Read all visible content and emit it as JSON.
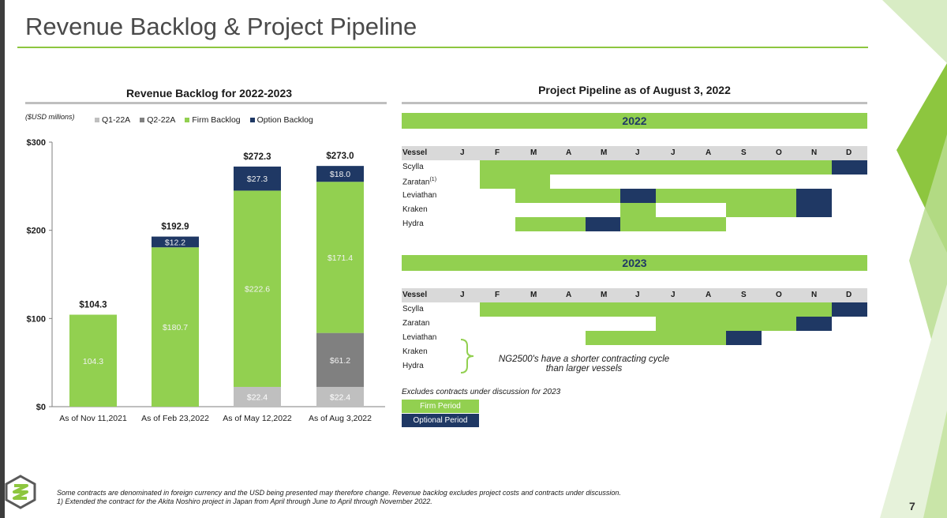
{
  "header": {
    "title": "Revenue Backlog & Project Pipeline"
  },
  "backlog": {
    "title": "Revenue Backlog for 2022-2023",
    "units": "($USD millions)",
    "legend": [
      {
        "label": "Q1-22A",
        "color": "#bfbfbf"
      },
      {
        "label": "Q2-22A",
        "color": "#808080"
      },
      {
        "label": "Firm Backlog",
        "color": "#92d050"
      },
      {
        "label": "Option Backlog",
        "color": "#1f3864"
      }
    ]
  },
  "chart_data": {
    "type": "bar",
    "stacked": true,
    "title": "Revenue Backlog for 2022-2023",
    "ylabel": "($USD millions)",
    "ylim": [
      0,
      300
    ],
    "yticks": [
      0,
      100,
      200,
      300
    ],
    "ytick_labels": [
      "$0",
      "$100",
      "$200",
      "$300"
    ],
    "categories": [
      "As of Nov 11,2021",
      "As of Feb 23,2022",
      "As of May 12,2022",
      "As of Aug 3,2022"
    ],
    "series": [
      {
        "name": "Q1-22A",
        "color": "#bfbfbf",
        "values": [
          0,
          0,
          22.4,
          22.4
        ],
        "labels": [
          "",
          "",
          "$22.4",
          "$22.4"
        ]
      },
      {
        "name": "Q2-22A",
        "color": "#808080",
        "values": [
          0,
          0,
          0,
          61.2
        ],
        "labels": [
          "",
          "",
          "",
          "$61.2"
        ]
      },
      {
        "name": "Firm Backlog",
        "color": "#92d050",
        "values": [
          104.3,
          180.7,
          222.6,
          171.4
        ],
        "labels": [
          "104.3",
          "$180.7",
          "$222.6",
          "$171.4"
        ]
      },
      {
        "name": "Option Backlog",
        "color": "#1f3864",
        "values": [
          0,
          12.2,
          27.3,
          18.0
        ],
        "labels": [
          "",
          "$12.2",
          "$27.3",
          "$18.0"
        ]
      }
    ],
    "totals": [
      "$104.3",
      "$192.9",
      "$272.3",
      "$273.0"
    ]
  },
  "pipeline": {
    "title": "Project Pipeline as of August 3, 2022",
    "vessel_header": "Vessel",
    "months": [
      "J",
      "F",
      "M",
      "A",
      "M",
      "J",
      "J",
      "A",
      "S",
      "O",
      "N",
      "D"
    ],
    "years": [
      {
        "label": "2022",
        "rows": [
          {
            "name": "Scylla",
            "sup": "",
            "segments": [
              {
                "start": 2,
                "end": 11,
                "type": "firm"
              },
              {
                "start": 12,
                "end": 12,
                "type": "opt"
              }
            ]
          },
          {
            "name": "Zaratan",
            "sup": "(1)",
            "segments": [
              {
                "start": 2,
                "end": 3,
                "type": "firm"
              }
            ]
          },
          {
            "name": "Leviathan",
            "sup": "",
            "segments": [
              {
                "start": 3,
                "end": 5,
                "type": "firm"
              },
              {
                "start": 6,
                "end": 6,
                "type": "opt"
              },
              {
                "start": 7,
                "end": 10,
                "type": "firm"
              },
              {
                "start": 11,
                "end": 11,
                "type": "opt"
              }
            ]
          },
          {
            "name": "Kraken",
            "sup": "",
            "segments": [
              {
                "start": 6,
                "end": 6,
                "type": "firm"
              },
              {
                "start": 9,
                "end": 10,
                "type": "firm"
              },
              {
                "start": 11,
                "end": 11,
                "type": "opt"
              }
            ]
          },
          {
            "name": "Hydra",
            "sup": "",
            "segments": [
              {
                "start": 3,
                "end": 4,
                "type": "firm"
              },
              {
                "start": 5,
                "end": 5,
                "type": "opt"
              },
              {
                "start": 6,
                "end": 8,
                "type": "firm"
              }
            ]
          }
        ]
      },
      {
        "label": "2023",
        "rows": [
          {
            "name": "Scylla",
            "sup": "",
            "segments": [
              {
                "start": 2,
                "end": 11,
                "type": "firm"
              },
              {
                "start": 12,
                "end": 12,
                "type": "opt"
              }
            ]
          },
          {
            "name": "Zaratan",
            "sup": "",
            "segments": [
              {
                "start": 7,
                "end": 10,
                "type": "firm"
              },
              {
                "start": 11,
                "end": 11,
                "type": "opt"
              }
            ]
          },
          {
            "name": "Leviathan",
            "sup": "",
            "segments": [
              {
                "start": 5,
                "end": 8,
                "type": "firm"
              },
              {
                "start": 9,
                "end": 9,
                "type": "opt"
              }
            ]
          },
          {
            "name": "Kraken",
            "sup": "",
            "segments": []
          },
          {
            "name": "Hydra",
            "sup": "",
            "segments": []
          }
        ]
      }
    ],
    "note": "NG2500's have a shorter contracting cycle than larger vessels",
    "excludes": "Excludes contracts under discussion for 2023",
    "legend": {
      "firm": "Firm Period",
      "optional": "Optional Period"
    }
  },
  "footer": {
    "line1": "Some contracts are denominated in foreign currency and the USD being presented may therefore change. Revenue backlog excludes project costs and contracts under discussion.",
    "line2": "1) Extended the contract for the Akita Noshiro project in Japan from April through June to April through November 2022.",
    "page": "7"
  },
  "colors": {
    "accent": "#8dc63f",
    "firm": "#92d050",
    "option": "#1f3864"
  }
}
